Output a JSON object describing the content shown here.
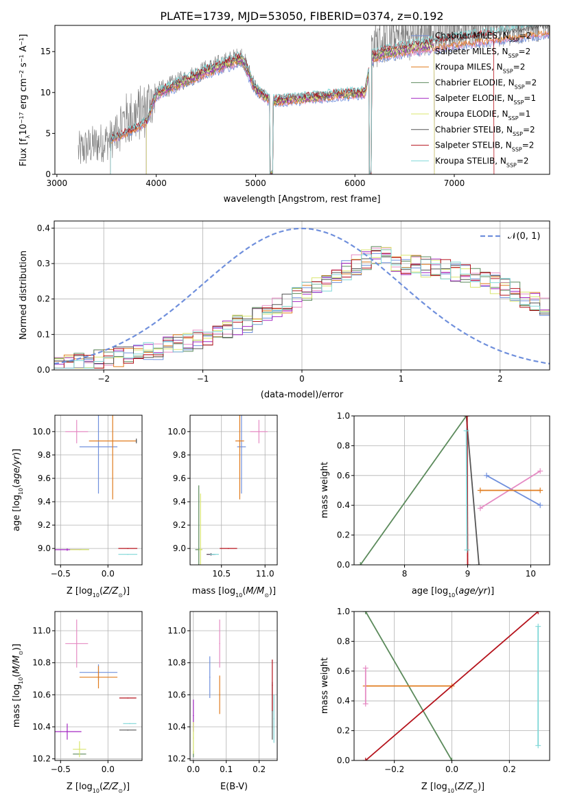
{
  "title": "PLATE=1739, MJD=53050, FIBERID=0374, z=0.192",
  "colors": {
    "chabrier_miles": "#6f8fdc",
    "salpeter_miles": "#e58ac3",
    "kroupa_miles": "#e07b1e",
    "chabrier_elodie": "#5b8a5b",
    "salpeter_elodie": "#a327c2",
    "kroupa_elodie": "#d9e66e",
    "chabrier_stelib": "#555555",
    "salpeter_stelib": "#b5121b",
    "kroupa_stelib": "#7fd7d7",
    "data": "#808080",
    "gauss": "#6f8fdc",
    "grid": "#b0b0b0"
  },
  "chart_data": [
    {
      "id": "spectrum",
      "type": "line",
      "xlabel": "wavelength [Angstrom, rest frame]",
      "ylabel": "Flux [fλ10⁻¹⁷ erg cm⁻² s⁻¹ A⁻¹]",
      "xlim": [
        2980,
        7960
      ],
      "ylim": [
        0,
        18.2
      ],
      "xticks": [
        3000,
        4000,
        5000,
        6000,
        7000
      ],
      "yticks": [
        0,
        5,
        10,
        15
      ],
      "grid": false,
      "legend_position": "top-right",
      "legend": [
        "Chabrier MILES, N_SSP=2",
        "Salpeter MILES, N_SSP=2",
        "Kroupa MILES, N_SSP=2",
        "Chabrier ELODIE, N_SSP=2",
        "Salpeter ELODIE, N_SSP=1",
        "Kroupa ELODIE, N_SSP=1",
        "Chabrier STELIB, N_SSP=2",
        "Salpeter STELIB, N_SSP=2",
        "Kroupa STELIB, N_SSP=2"
      ],
      "spectrum_envelope": {
        "x": [
          3220,
          3300,
          3500,
          3700,
          3900,
          4000,
          4300,
          4500,
          4800,
          4860,
          5000,
          5160,
          5300,
          5600,
          5800,
          6100,
          6170,
          6300,
          6600,
          6800,
          7000,
          7400,
          7960
        ],
        "y": [
          2.8,
          3.3,
          4.1,
          5.2,
          6.5,
          10.0,
          11.7,
          12.8,
          14.2,
          14.5,
          10.6,
          9.1,
          9.3,
          9.6,
          9.9,
          10.2,
          14.5,
          15.2,
          15.8,
          16.2,
          16.6,
          17.2,
          18.2
        ]
      }
    },
    {
      "id": "residuals",
      "type": "histogram",
      "xlabel": "(data-model)/error",
      "ylabel": "Normed distribution",
      "xlim": [
        -2.5,
        2.5
      ],
      "ylim": [
        0,
        0.42
      ],
      "xticks": [
        -2,
        -1,
        0,
        1,
        2
      ],
      "yticks": [
        0.0,
        0.1,
        0.2,
        0.3,
        0.4
      ],
      "grid": true,
      "legend": [
        "N(0,1)"
      ],
      "legend_position": "top-right",
      "bin_width": 0.1,
      "mean_hist_x": [
        -2.5,
        -2.0,
        -1.5,
        -1.0,
        -0.5,
        0.0,
        0.5,
        0.8,
        1.0,
        1.5,
        2.0,
        2.5
      ],
      "mean_hist_y": [
        0.012,
        0.03,
        0.055,
        0.09,
        0.14,
        0.21,
        0.29,
        0.33,
        0.3,
        0.28,
        0.24,
        0.17
      ]
    },
    {
      "id": "age_vs_Z",
      "type": "scatter",
      "xlabel": "Z [log10(Z/Z☉)]",
      "ylabel": "age  [log10(age/yr)]",
      "xlim": [
        -0.56,
        0.36
      ],
      "ylim": [
        8.86,
        10.14
      ],
      "xticks": [
        -0.5,
        0.0
      ],
      "yticks": [
        9.0,
        9.2,
        9.4,
        9.6,
        9.8,
        10.0
      ],
      "grid": true,
      "points": [
        {
          "series": "chabrier_miles",
          "x": -0.1,
          "y": 9.87,
          "xerr": 0.2,
          "yerr": 0.4
        },
        {
          "series": "salpeter_miles",
          "x": -0.33,
          "y": 10.0,
          "xerr": 0.12,
          "yerr": 0.1
        },
        {
          "series": "kroupa_miles",
          "x": 0.05,
          "y": 9.92,
          "xerr": 0.25,
          "yerr": 0.5
        },
        {
          "series": "chabrier_elodie",
          "x": -0.3,
          "y": 8.99,
          "xerr": 0.1,
          "yerr": 0.0
        },
        {
          "series": "salpeter_elodie",
          "x": -0.43,
          "y": 8.99,
          "xerr": 0.15,
          "yerr": 0.01
        },
        {
          "series": "kroupa_elodie",
          "x": -0.3,
          "y": 8.99,
          "xerr": 0.1,
          "yerr": 0.0
        },
        {
          "series": "chabrier_stelib",
          "x": 0.3,
          "y": 9.92,
          "xerr": 0.0,
          "yerr": 0.02
        },
        {
          "series": "salpeter_stelib",
          "x": 0.21,
          "y": 9.0,
          "xerr": 0.1,
          "yerr": 0.0
        },
        {
          "series": "kroupa_stelib",
          "x": 0.21,
          "y": 8.95,
          "xerr": 0.1,
          "yerr": 0.0
        }
      ]
    },
    {
      "id": "age_vs_mass",
      "type": "scatter",
      "xlabel": "mass [log10(M/M☉)]",
      "ylabel": "",
      "xlim": [
        10.14,
        11.14
      ],
      "ylim": [
        8.86,
        10.14
      ],
      "xticks": [
        10.5,
        11.0
      ],
      "yticks": [
        9.0,
        9.2,
        9.4,
        9.6,
        9.8,
        10.0
      ],
      "grid": true,
      "points": [
        {
          "series": "chabrier_miles",
          "x": 10.73,
          "y": 9.87,
          "xerr": 0.05,
          "yerr": 0.4
        },
        {
          "series": "salpeter_miles",
          "x": 10.93,
          "y": 10.0,
          "xerr": 0.1,
          "yerr": 0.1
        },
        {
          "series": "kroupa_miles",
          "x": 10.71,
          "y": 9.92,
          "xerr": 0.05,
          "yerr": 0.5
        },
        {
          "series": "chabrier_elodie",
          "x": 10.24,
          "y": 8.99,
          "xerr": 0.04,
          "yerr": 0.55
        },
        {
          "series": "salpeter_elodie",
          "x": 10.38,
          "y": 8.95,
          "xerr": 0.05,
          "yerr": 0.01
        },
        {
          "series": "kroupa_elodie",
          "x": 10.26,
          "y": 8.99,
          "xerr": 0.02,
          "yerr": 0.48
        },
        {
          "series": "chabrier_stelib",
          "x": 10.38,
          "y": 8.95,
          "xerr": 0.05,
          "yerr": 0.01
        },
        {
          "series": "salpeter_stelib",
          "x": 10.58,
          "y": 9.0,
          "xerr": 0.1,
          "yerr": 0.0
        },
        {
          "series": "kroupa_stelib",
          "x": 10.42,
          "y": 8.95,
          "xerr": 0.05,
          "yerr": 0.0
        }
      ]
    },
    {
      "id": "weight_vs_age",
      "type": "line",
      "xlabel": "age  [log10(age/yr)]",
      "ylabel": "mass weight",
      "xlim": [
        7.2,
        10.3
      ],
      "ylim": [
        0,
        1.0
      ],
      "xticks": [
        8,
        9,
        10
      ],
      "yticks": [
        0.0,
        0.2,
        0.4,
        0.6,
        0.8,
        1.0
      ],
      "grid": true,
      "series": [
        {
          "series": "chabrier_miles",
          "x": [
            9.3,
            10.15
          ],
          "y": [
            0.6,
            0.4
          ]
        },
        {
          "series": "salpeter_miles",
          "x": [
            9.2,
            10.15
          ],
          "y": [
            0.38,
            0.63
          ]
        },
        {
          "series": "kroupa_miles",
          "x": [
            9.2,
            10.15
          ],
          "y": [
            0.5,
            0.5
          ]
        },
        {
          "series": "chabrier_elodie",
          "x": [
            7.3,
            8.98
          ],
          "y": [
            0.0,
            1.0
          ]
        },
        {
          "series": "chabrier_stelib",
          "x": [
            8.98,
            9.18
          ],
          "y": [
            1.0,
            0.0
          ]
        },
        {
          "series": "salpeter_stelib",
          "x": [
            8.99,
            9.0
          ],
          "y": [
            1.0,
            0.0
          ]
        },
        {
          "series": "kroupa_stelib",
          "x": [
            8.98,
            8.99
          ],
          "y": [
            0.9,
            0.1
          ]
        }
      ]
    },
    {
      "id": "mass_vs_Z",
      "type": "scatter",
      "xlabel": "Z [log10(Z/Z☉)]",
      "ylabel": "mass [log10(M/M☉)]",
      "xlim": [
        -0.56,
        0.36
      ],
      "ylim": [
        10.19,
        11.12
      ],
      "xticks": [
        -0.5,
        0.0
      ],
      "yticks": [
        10.2,
        10.4,
        10.6,
        10.8,
        11.0
      ],
      "grid": true,
      "points": [
        {
          "series": "chabrier_miles",
          "x": -0.1,
          "y": 10.74,
          "xerr": 0.2,
          "yerr": 0.05
        },
        {
          "series": "salpeter_miles",
          "x": -0.33,
          "y": 10.92,
          "xerr": 0.12,
          "yerr": 0.15
        },
        {
          "series": "kroupa_miles",
          "x": -0.1,
          "y": 10.71,
          "xerr": 0.2,
          "yerr": 0.07
        },
        {
          "series": "chabrier_elodie",
          "x": -0.3,
          "y": 10.23,
          "xerr": 0.07,
          "yerr": 0.0
        },
        {
          "series": "salpeter_elodie",
          "x": -0.43,
          "y": 10.37,
          "xerr": 0.15,
          "yerr": 0.05
        },
        {
          "series": "kroupa_elodie",
          "x": -0.3,
          "y": 10.26,
          "xerr": 0.07,
          "yerr": 0.05
        },
        {
          "series": "chabrier_stelib",
          "x": 0.21,
          "y": 10.38,
          "xerr": 0.09,
          "yerr": 0.0
        },
        {
          "series": "salpeter_stelib",
          "x": 0.21,
          "y": 10.58,
          "xerr": 0.09,
          "yerr": 0.0
        },
        {
          "series": "kroupa_stelib",
          "x": 0.23,
          "y": 10.42,
          "xerr": 0.07,
          "yerr": 0.0
        }
      ]
    },
    {
      "id": "mass_vs_ebv",
      "type": "scatter",
      "xlabel": "E(B-V)",
      "ylabel": "",
      "xlim": [
        -0.01,
        0.255
      ],
      "ylim": [
        10.19,
        11.12
      ],
      "xticks": [
        0.0,
        0.1,
        0.2
      ],
      "yticks": [
        10.2,
        10.4,
        10.6,
        10.8,
        11.0
      ],
      "grid": true,
      "points": [
        {
          "series": "chabrier_miles",
          "x": 0.05,
          "y": 10.71,
          "yerr": 0.13
        },
        {
          "series": "salpeter_miles",
          "x": 0.08,
          "y": 10.92,
          "yerr": 0.15
        },
        {
          "series": "kroupa_miles",
          "x": 0.08,
          "y": 10.6,
          "yerr": 0.12
        },
        {
          "series": "chabrier_elodie",
          "x": 0.0,
          "y": 10.23,
          "yerr": 0.02
        },
        {
          "series": "salpeter_elodie",
          "x": 0.0,
          "y": 10.47,
          "yerr": 0.1
        },
        {
          "series": "kroupa_elodie",
          "x": 0.0,
          "y": 10.33,
          "yerr": 0.1
        },
        {
          "series": "chabrier_stelib",
          "x": 0.24,
          "y": 10.5,
          "yerr": 0.18
        },
        {
          "series": "salpeter_stelib",
          "x": 0.24,
          "y": 10.66,
          "yerr": 0.16
        },
        {
          "series": "kroupa_stelib",
          "x": 0.245,
          "y": 10.45,
          "yerr": 0.15
        }
      ]
    },
    {
      "id": "weight_vs_Z",
      "type": "line",
      "xlabel": "Z [log10(Z/Z☉)]",
      "ylabel": "mass weight",
      "xlim": [
        -0.34,
        0.34
      ],
      "ylim": [
        0,
        1.0
      ],
      "xticks": [
        -0.2,
        0.0,
        0.2
      ],
      "yticks": [
        0.0,
        0.2,
        0.4,
        0.6,
        0.8,
        1.0
      ],
      "grid": true,
      "series": [
        {
          "series": "chabrier_elodie",
          "x": [
            -0.3,
            0.0
          ],
          "y": [
            1.0,
            0.0
          ]
        },
        {
          "series": "kroupa_miles",
          "x": [
            -0.3,
            0.0
          ],
          "y": [
            0.5,
            0.5
          ]
        },
        {
          "series": "salpeter_stelib",
          "x": [
            -0.3,
            0.3
          ],
          "y": [
            0.0,
            1.0
          ]
        },
        {
          "series": "salpeter_miles",
          "x": [
            -0.3,
            -0.3
          ],
          "y": [
            0.38,
            0.62
          ]
        },
        {
          "series": "kroupa_stelib",
          "x": [
            0.3,
            0.3
          ],
          "y": [
            0.1,
            0.9
          ]
        }
      ]
    }
  ]
}
